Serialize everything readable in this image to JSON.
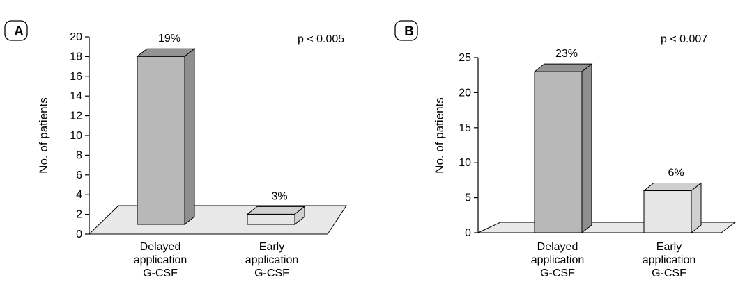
{
  "chart_data": [
    {
      "type": "bar",
      "panel_label": "A",
      "pvalue": "p < 0.005",
      "ylabel": "No. of patients",
      "ylim": [
        0,
        20
      ],
      "yticks": [
        "0",
        "2",
        "4",
        "6",
        "8",
        "10",
        "12",
        "14",
        "16",
        "18",
        "20"
      ],
      "categories": [
        [
          "Delayed",
          "application",
          "G-CSF"
        ],
        [
          "Early",
          "application",
          "G-CSF"
        ]
      ],
      "values": [
        19,
        3
      ],
      "data_labels": [
        "19%",
        "3%"
      ]
    },
    {
      "type": "bar",
      "panel_label": "B",
      "pvalue": "p < 0.007",
      "ylabel": "No. of patients",
      "ylim": [
        0,
        25
      ],
      "yticks": [
        "0",
        "5",
        "10",
        "15",
        "20",
        "25"
      ],
      "categories": [
        [
          "Delayed",
          "application",
          "G-CSF"
        ],
        [
          "Early",
          "application",
          "G-CSF"
        ]
      ],
      "values": [
        23,
        6
      ],
      "data_labels": [
        "23%",
        "6%"
      ]
    }
  ],
  "colors": {
    "delayed_front": "#b8b8b8",
    "delayed_top": "#939393",
    "delayed_side": "#8f8f8f",
    "early_front": "#e6e6e6",
    "early_top": "#cfcfcf",
    "early_side": "#d0d0d0",
    "floor": "#e8e8e8"
  }
}
